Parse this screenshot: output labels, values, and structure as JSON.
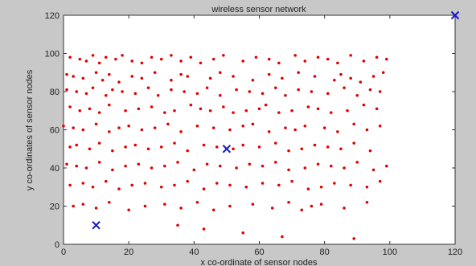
{
  "chart_data": {
    "type": "scatter",
    "title": "wireless sensor network",
    "xlabel": "x co-ordinate of sensor nodes",
    "ylabel": "y co-ordinates of sensor nodes",
    "xlim": [
      0,
      120
    ],
    "ylim": [
      0,
      120
    ],
    "xticks": [
      0,
      20,
      40,
      60,
      80,
      100,
      120
    ],
    "yticks": [
      0,
      20,
      40,
      60,
      80,
      100,
      120
    ],
    "grid": false,
    "series": [
      {
        "marker": "dot",
        "color": "#e00000",
        "x": [
          2,
          5,
          7,
          9,
          11,
          13,
          16,
          18,
          21,
          24,
          27,
          30,
          33,
          36,
          39,
          42,
          46,
          49,
          55,
          59,
          63,
          66,
          71,
          74,
          78,
          81,
          84,
          88,
          92,
          96,
          99,
          1,
          3,
          6,
          10,
          12,
          14,
          17,
          21,
          24,
          28,
          33,
          36,
          38,
          45,
          48,
          52,
          58,
          63,
          67,
          72,
          77,
          83,
          85,
          88,
          91,
          95,
          98,
          1,
          4,
          7,
          9,
          13,
          15,
          18,
          22,
          26,
          29,
          33,
          37,
          41,
          44,
          48,
          53,
          57,
          61,
          65,
          68,
          72,
          76,
          81,
          86,
          90,
          94,
          97,
          2,
          5,
          8,
          11,
          14,
          19,
          23,
          27,
          31,
          34,
          39,
          42,
          45,
          49,
          52,
          56,
          60,
          62,
          66,
          70,
          75,
          78,
          82,
          87,
          92,
          96,
          0,
          3,
          6,
          10,
          14,
          17,
          20,
          24,
          28,
          32,
          36,
          41,
          46,
          51,
          55,
          58,
          63,
          68,
          71,
          74,
          80,
          84,
          89,
          93,
          97,
          2,
          4,
          8,
          11,
          15,
          19,
          22,
          26,
          30,
          34,
          38,
          43,
          47,
          52,
          55,
          60,
          65,
          69,
          73,
          77,
          81,
          85,
          89,
          94,
          1,
          4,
          7,
          11,
          15,
          19,
          23,
          27,
          31,
          35,
          40,
          44,
          48,
          53,
          57,
          61,
          65,
          69,
          74,
          78,
          82,
          86,
          90,
          95,
          99,
          2,
          6,
          9,
          13,
          17,
          21,
          25,
          30,
          34,
          38,
          43,
          47,
          51,
          56,
          61,
          66,
          70,
          75,
          79,
          83,
          88,
          93,
          97,
          3,
          6,
          10,
          14,
          20,
          25,
          31,
          36,
          41,
          46,
          51,
          58,
          64,
          69,
          73,
          76,
          79,
          86,
          93,
          35,
          43,
          55,
          67,
          89
        ],
        "y": [
          98,
          97,
          96,
          99,
          95,
          98,
          97,
          99,
          96,
          95,
          98,
          97,
          99,
          96,
          98,
          95,
          97,
          99,
          96,
          98,
          97,
          95,
          99,
          96,
          98,
          97,
          95,
          99,
          96,
          98,
          97,
          89,
          88,
          87,
          90,
          86,
          89,
          85,
          88,
          87,
          90,
          86,
          89,
          88,
          87,
          90,
          88,
          86,
          89,
          87,
          90,
          88,
          86,
          89,
          87,
          85,
          88,
          90,
          81,
          80,
          79,
          82,
          78,
          81,
          80,
          79,
          82,
          78,
          81,
          80,
          79,
          82,
          78,
          81,
          80,
          79,
          82,
          78,
          81,
          80,
          79,
          82,
          78,
          81,
          80,
          72,
          70,
          71,
          69,
          73,
          70,
          71,
          72,
          69,
          70,
          73,
          71,
          70,
          72,
          69,
          70,
          71,
          73,
          69,
          70,
          72,
          71,
          69,
          70,
          73,
          71,
          62,
          61,
          60,
          63,
          59,
          61,
          62,
          60,
          61,
          63,
          59,
          62,
          61,
          60,
          62,
          63,
          59,
          61,
          60,
          62,
          61,
          59,
          63,
          60,
          62,
          51,
          52,
          50,
          53,
          49,
          51,
          52,
          50,
          51,
          53,
          49,
          52,
          51,
          50,
          52,
          51,
          53,
          49,
          50,
          52,
          51,
          50,
          53,
          49,
          42,
          41,
          40,
          43,
          39,
          41,
          42,
          40,
          41,
          43,
          39,
          42,
          41,
          40,
          42,
          41,
          43,
          39,
          40,
          42,
          41,
          40,
          43,
          39,
          41,
          31,
          32,
          30,
          33,
          29,
          31,
          32,
          30,
          31,
          33,
          29,
          32,
          31,
          30,
          32,
          31,
          33,
          29,
          30,
          32,
          31,
          30,
          33,
          20,
          21,
          19,
          22,
          18,
          20,
          21,
          19,
          22,
          18,
          20,
          21,
          19,
          22,
          18,
          20,
          21,
          19,
          22,
          10,
          8,
          6,
          4,
          3
        ]
      },
      {
        "marker": "x",
        "color": "#1a1acc",
        "x": [
          10,
          50,
          120
        ],
        "y": [
          10,
          50,
          120
        ]
      }
    ]
  }
}
